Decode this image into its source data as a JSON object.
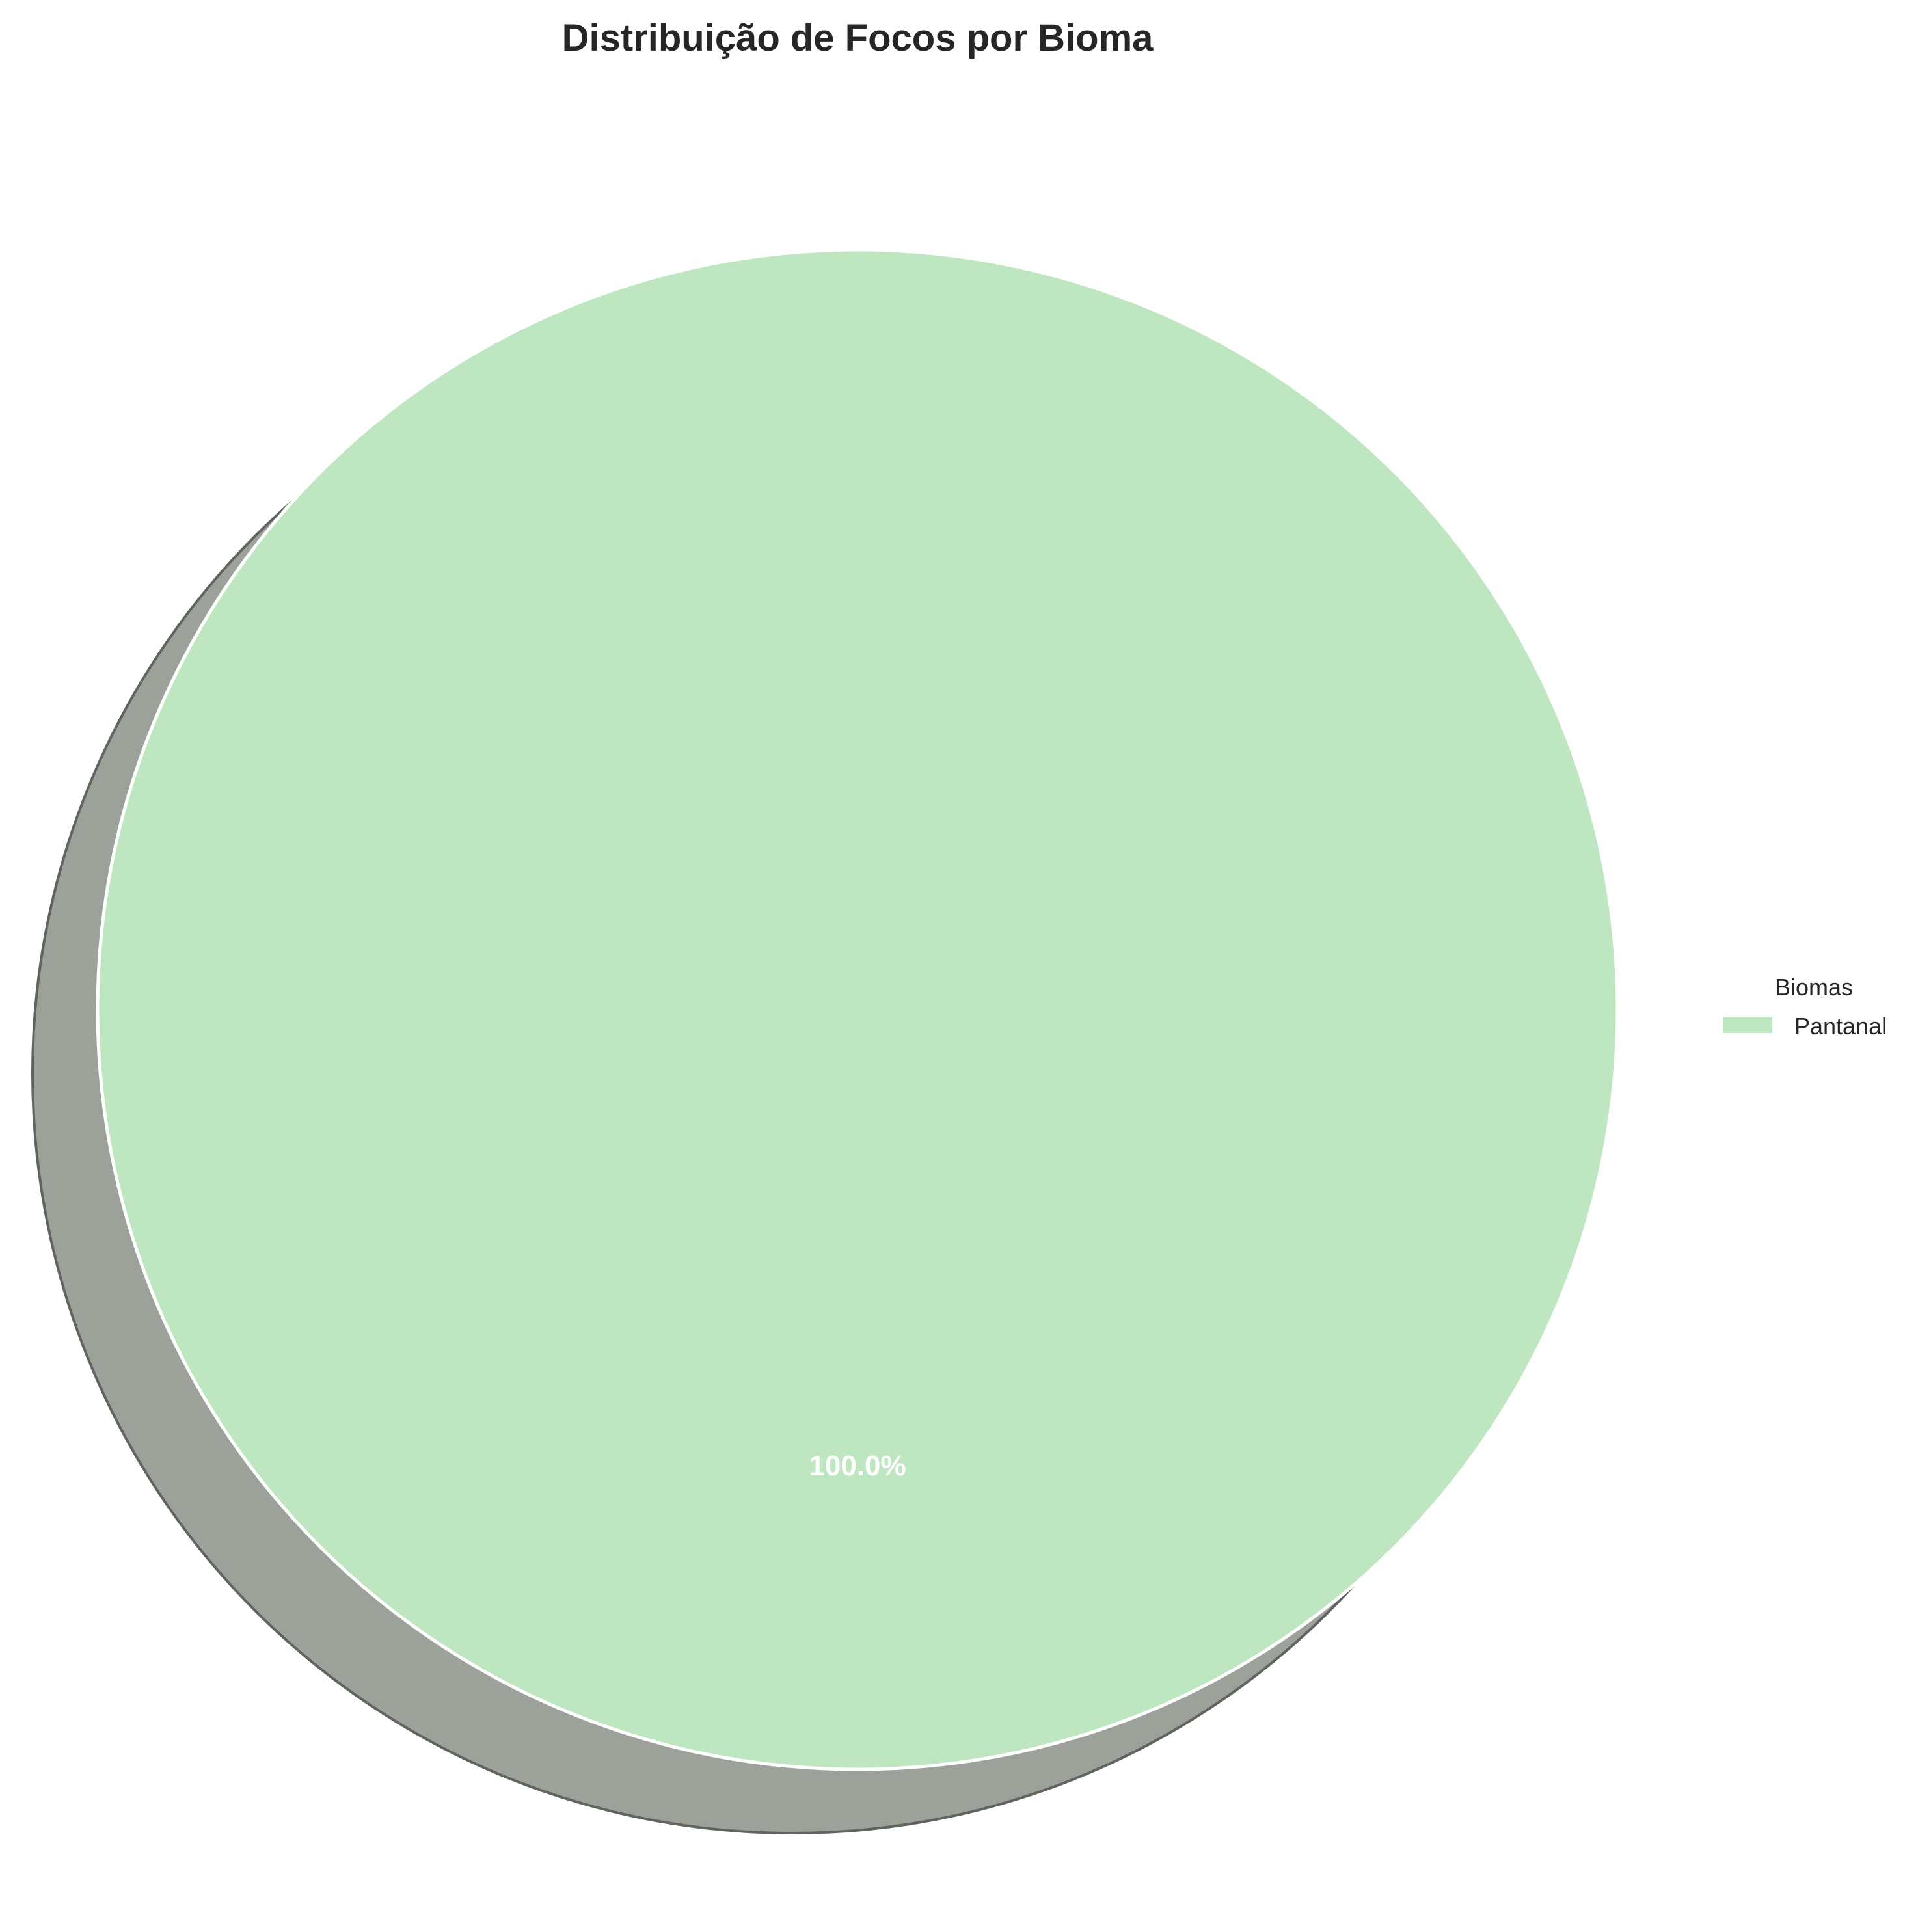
{
  "chart_data": {
    "type": "pie",
    "title": "Distribuição de Focos por Bioma",
    "slices": [
      {
        "label": "Pantanal",
        "value": 100.0,
        "percent_label": "100.0%",
        "color": "#bee6c0"
      }
    ],
    "shadow": true,
    "shadow_color": "#9ca19a",
    "edge_color": "#ffffff",
    "legend": {
      "title": "Biomas",
      "placement": "center-right",
      "entries": [
        "Pantanal"
      ]
    }
  }
}
